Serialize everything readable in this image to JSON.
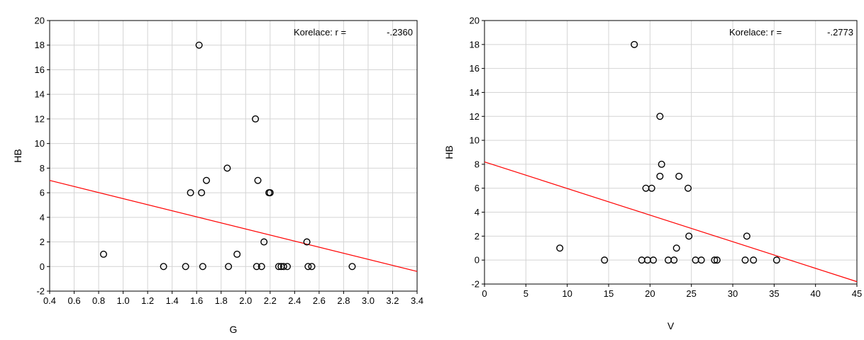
{
  "chart_data": [
    {
      "type": "scatter",
      "title": "",
      "xlabel": "G",
      "ylabel": "HB",
      "xlim": [
        0.4,
        3.4
      ],
      "ylim": [
        -2,
        20
      ],
      "x_ticks": [
        "0.4",
        "0.6",
        "0.8",
        "1.0",
        "1.2",
        "1.4",
        "1.6",
        "1.8",
        "2.0",
        "2.2",
        "2.4",
        "2.6",
        "2.8",
        "3.0",
        "3.2",
        "3.4"
      ],
      "y_ticks": [
        "-2",
        "0",
        "2",
        "4",
        "6",
        "8",
        "10",
        "12",
        "14",
        "16",
        "18",
        "20"
      ],
      "grid": true,
      "correlation_label": "Korelace: r =",
      "correlation_value": "-.2360",
      "regression_line": {
        "color": "#ff0000",
        "points": [
          [
            0.4,
            7.0
          ],
          [
            3.4,
            -0.4
          ]
        ]
      },
      "marker_color": "#000000",
      "points": [
        [
          0.84,
          1
        ],
        [
          1.33,
          0
        ],
        [
          1.51,
          0
        ],
        [
          1.55,
          6
        ],
        [
          1.62,
          18
        ],
        [
          1.64,
          6
        ],
        [
          1.65,
          0
        ],
        [
          1.68,
          7
        ],
        [
          1.85,
          8
        ],
        [
          1.86,
          0
        ],
        [
          1.93,
          1
        ],
        [
          2.08,
          12
        ],
        [
          2.09,
          0
        ],
        [
          2.1,
          7
        ],
        [
          2.13,
          0
        ],
        [
          2.15,
          2
        ],
        [
          2.19,
          6
        ],
        [
          2.2,
          6
        ],
        [
          2.27,
          0
        ],
        [
          2.29,
          0
        ],
        [
          2.31,
          0
        ],
        [
          2.34,
          0
        ],
        [
          2.5,
          2
        ],
        [
          2.51,
          0
        ],
        [
          2.54,
          0
        ],
        [
          2.87,
          0
        ]
      ]
    },
    {
      "type": "scatter",
      "title": "",
      "xlabel": "V",
      "ylabel": "HB",
      "xlim": [
        0,
        45
      ],
      "ylim": [
        -2,
        20
      ],
      "x_ticks": [
        "0",
        "5",
        "10",
        "15",
        "20",
        "25",
        "30",
        "35",
        "40",
        "45"
      ],
      "y_ticks": [
        "-2",
        "0",
        "2",
        "4",
        "6",
        "8",
        "10",
        "12",
        "14",
        "16",
        "18",
        "20"
      ],
      "grid": true,
      "correlation_label": "Korelace: r =",
      "correlation_value": "-.2773",
      "regression_line": {
        "color": "#ff0000",
        "points": [
          [
            0,
            8.2
          ],
          [
            45,
            -1.8
          ]
        ]
      },
      "marker_color": "#000000",
      "points": [
        [
          9.1,
          1
        ],
        [
          14.5,
          0
        ],
        [
          18.1,
          18
        ],
        [
          19.0,
          0
        ],
        [
          19.5,
          6
        ],
        [
          19.7,
          0
        ],
        [
          20.2,
          6
        ],
        [
          20.4,
          0
        ],
        [
          21.2,
          12
        ],
        [
          21.2,
          7
        ],
        [
          21.4,
          8
        ],
        [
          22.2,
          0
        ],
        [
          22.9,
          0
        ],
        [
          23.2,
          1
        ],
        [
          23.5,
          7
        ],
        [
          24.6,
          6
        ],
        [
          24.7,
          2
        ],
        [
          25.5,
          0
        ],
        [
          26.2,
          0
        ],
        [
          27.8,
          0
        ],
        [
          28.1,
          0
        ],
        [
          31.5,
          0
        ],
        [
          31.7,
          2
        ],
        [
          32.5,
          0
        ],
        [
          35.3,
          0
        ]
      ]
    }
  ]
}
